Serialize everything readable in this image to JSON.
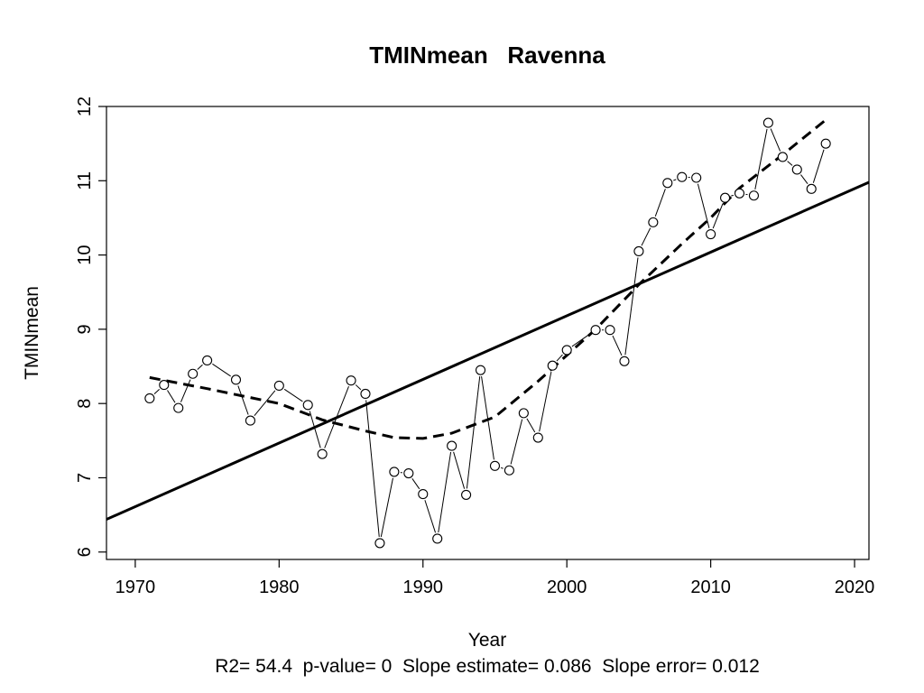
{
  "chart_data": {
    "type": "scatter",
    "title": "TMINmean   Ravenna",
    "xlabel": "Year",
    "ylabel": "TMINmean",
    "stats_line": "R2= 54.4  p-value= 0  Slope estimate= 0.086  Slope error= 0.012",
    "xlim": [
      1968,
      2021
    ],
    "ylim": [
      5.9,
      12
    ],
    "x_ticks": [
      1970,
      1980,
      1990,
      2000,
      2010,
      2020
    ],
    "x_tick_labels": [
      "1970",
      "1980",
      "1990",
      "2000",
      "2010",
      "2020"
    ],
    "y_ticks": [
      6,
      7,
      8,
      9,
      10,
      11,
      12
    ],
    "y_tick_labels": [
      "6",
      "7",
      "8",
      "9",
      "10",
      "11",
      "12"
    ],
    "grid": false,
    "series": [
      {
        "name": "observed",
        "style": "points-connected",
        "x": [
          1971,
          1972,
          1973,
          1974,
          1975,
          1977,
          1978,
          1980,
          1982,
          1983,
          1985,
          1986,
          1987,
          1988,
          1989,
          1990,
          1991,
          1992,
          1993,
          1994,
          1995,
          1996,
          1997,
          1998,
          1999,
          2000,
          2002,
          2003,
          2004,
          2005,
          2006,
          2007,
          2008,
          2009,
          2010,
          2011,
          2012,
          2013,
          2014,
          2015,
          2016,
          2017,
          2018
        ],
        "y": [
          8.07,
          8.25,
          7.94,
          8.4,
          8.58,
          8.32,
          7.77,
          8.24,
          7.98,
          7.32,
          8.31,
          8.13,
          6.12,
          7.08,
          7.06,
          6.78,
          6.18,
          7.43,
          6.77,
          8.45,
          7.16,
          7.1,
          7.87,
          7.54,
          8.51,
          8.72,
          8.99,
          8.99,
          8.57,
          10.05,
          10.44,
          10.97,
          11.05,
          11.04,
          10.28,
          10.77,
          10.83,
          10.8,
          11.78,
          11.32,
          11.15,
          10.89,
          11.5
        ]
      },
      {
        "name": "linear trend",
        "style": "solid",
        "x": [
          1968,
          2021
        ],
        "y": [
          6.44,
          10.98
        ]
      },
      {
        "name": "smoothed",
        "style": "dashed",
        "x": [
          1971,
          1975,
          1980,
          1983,
          1986,
          1988,
          1990,
          1992,
          1995,
          1998,
          2000,
          2002,
          2005,
          2008,
          2010,
          2012,
          2015,
          2018
        ],
        "y": [
          8.35,
          8.2,
          8.0,
          7.78,
          7.63,
          7.54,
          7.53,
          7.6,
          7.82,
          8.3,
          8.65,
          9.0,
          9.6,
          10.15,
          10.5,
          10.9,
          11.35,
          11.82
        ]
      }
    ]
  }
}
